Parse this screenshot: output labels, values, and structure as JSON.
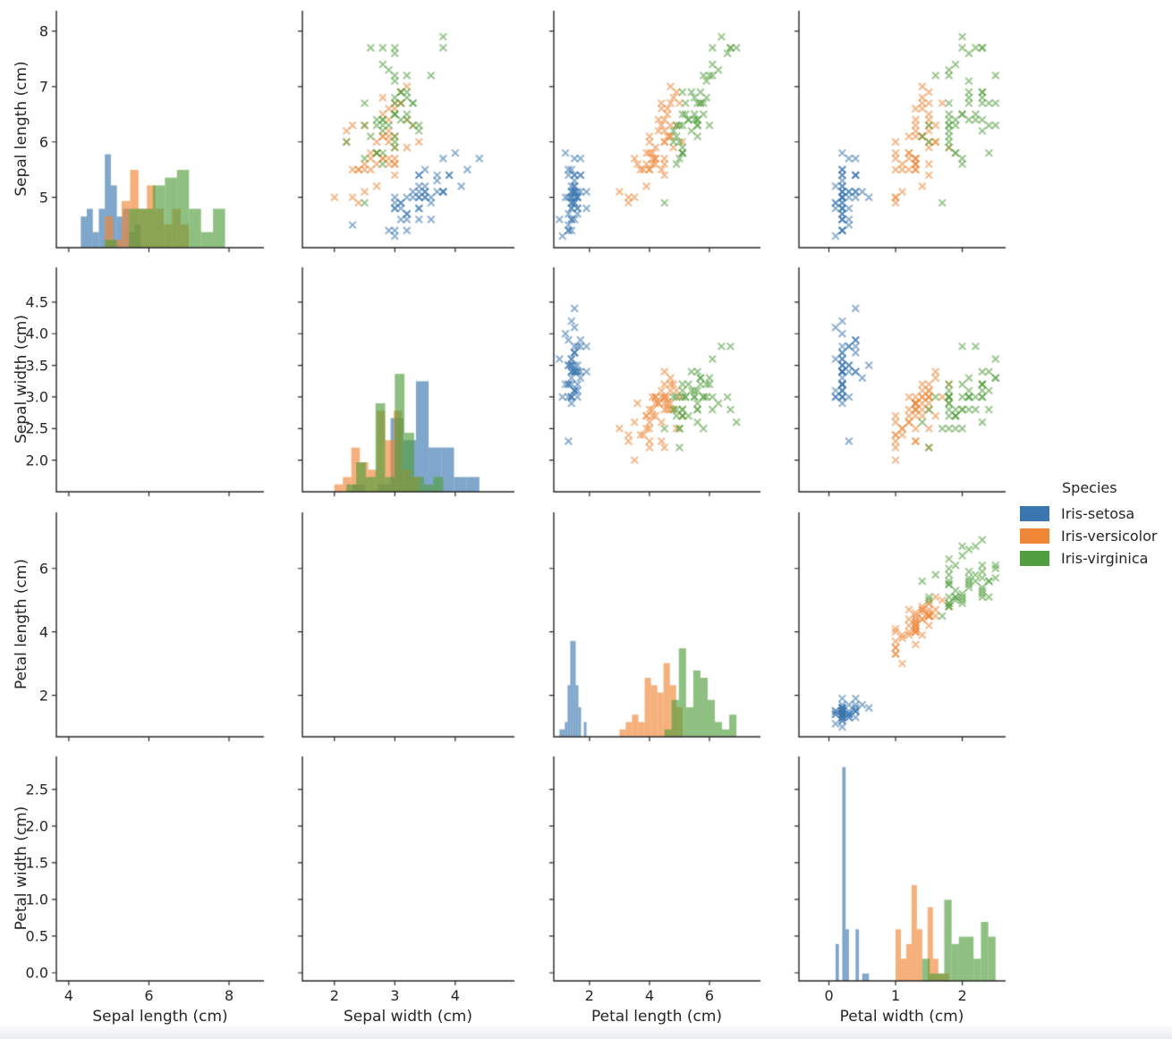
{
  "legend": {
    "title": "Species",
    "items": [
      {
        "label": "Iris-setosa",
        "color": "#3b76af"
      },
      {
        "label": "Iris-versicolor",
        "color": "#ef8636"
      },
      {
        "label": "Iris-virginica",
        "color": "#519e3e"
      }
    ]
  },
  "style": {
    "spine_color": "#262626",
    "text_color": "#262626",
    "background": "#ffffff",
    "scatter_alpha": 0.6,
    "hist_alpha": 0.65,
    "kde_core_gray": [
      90,
      100,
      110
    ]
  },
  "chart_data": {
    "type": "pairplot",
    "variables": [
      "Sepal length (cm)",
      "Sepal width (cm)",
      "Petal length (cm)",
      "Petal width (cm)"
    ],
    "panel_types": {
      "diagonal": "histogram",
      "upper_triangle": "scatter-x-markers",
      "lower_triangle": "filled-kde-contours"
    },
    "hist_bins_per_species": 10,
    "hist_count_max_scale": 30.45,
    "x_tick_values": [
      [
        4,
        6,
        8
      ],
      [
        2,
        3,
        4
      ],
      [
        2,
        4,
        6
      ],
      [
        0,
        1,
        2
      ]
    ],
    "x_tick_labels": [
      [
        "4",
        "6",
        "8"
      ],
      [
        "2",
        "3",
        "4"
      ],
      [
        "2",
        "4",
        "6"
      ],
      [
        "0",
        "1",
        "2"
      ]
    ],
    "y_tick_values": [
      [
        5,
        6,
        7,
        8
      ],
      [
        2.0,
        2.5,
        3.0,
        3.5,
        4.0,
        4.5
      ],
      [
        2,
        4,
        6
      ],
      [
        0.0,
        0.5,
        1.0,
        1.5,
        2.0,
        2.5
      ]
    ],
    "y_tick_labels": [
      [
        "5",
        "6",
        "7",
        "8"
      ],
      [
        "2.0",
        "2.5",
        "3.0",
        "3.5",
        "4.0",
        "4.5"
      ],
      [
        "2",
        "4",
        "6"
      ],
      [
        "0.0",
        "0.5",
        "1.0",
        "1.5",
        "2.0",
        "2.5"
      ]
    ],
    "x_lims": [
      [
        3.69,
        8.87
      ],
      [
        1.47,
        4.98
      ],
      [
        0.81,
        7.7
      ],
      [
        -0.45,
        2.65
      ]
    ],
    "y_lims": [
      [
        4.09,
        8.37
      ],
      [
        1.5,
        5.05
      ],
      [
        0.69,
        7.77
      ],
      [
        -0.11,
        2.95
      ]
    ],
    "series": [
      {
        "name": "Iris-setosa",
        "color": "#3b76af",
        "points": [
          [
            5.1,
            3.5,
            1.4,
            0.2
          ],
          [
            4.9,
            3.0,
            1.4,
            0.2
          ],
          [
            4.7,
            3.2,
            1.3,
            0.2
          ],
          [
            4.6,
            3.1,
            1.5,
            0.2
          ],
          [
            5.0,
            3.6,
            1.4,
            0.2
          ],
          [
            5.4,
            3.9,
            1.7,
            0.4
          ],
          [
            4.6,
            3.4,
            1.4,
            0.3
          ],
          [
            5.0,
            3.4,
            1.5,
            0.2
          ],
          [
            4.4,
            2.9,
            1.4,
            0.2
          ],
          [
            4.9,
            3.1,
            1.5,
            0.1
          ],
          [
            5.4,
            3.7,
            1.5,
            0.2
          ],
          [
            4.8,
            3.4,
            1.6,
            0.2
          ],
          [
            4.8,
            3.0,
            1.4,
            0.1
          ],
          [
            4.3,
            3.0,
            1.1,
            0.1
          ],
          [
            5.8,
            4.0,
            1.2,
            0.2
          ],
          [
            5.7,
            4.4,
            1.5,
            0.4
          ],
          [
            5.4,
            3.9,
            1.3,
            0.4
          ],
          [
            5.1,
            3.5,
            1.4,
            0.3
          ],
          [
            5.7,
            3.8,
            1.7,
            0.3
          ],
          [
            5.1,
            3.8,
            1.5,
            0.3
          ],
          [
            5.4,
            3.4,
            1.7,
            0.2
          ],
          [
            5.1,
            3.7,
            1.5,
            0.4
          ],
          [
            4.6,
            3.6,
            1.0,
            0.2
          ],
          [
            5.1,
            3.3,
            1.7,
            0.5
          ],
          [
            4.8,
            3.4,
            1.9,
            0.2
          ],
          [
            5.0,
            3.0,
            1.6,
            0.2
          ],
          [
            5.0,
            3.4,
            1.6,
            0.4
          ],
          [
            5.2,
            3.5,
            1.5,
            0.2
          ],
          [
            5.2,
            3.4,
            1.4,
            0.2
          ],
          [
            4.7,
            3.2,
            1.6,
            0.2
          ],
          [
            4.8,
            3.1,
            1.6,
            0.2
          ],
          [
            5.4,
            3.4,
            1.5,
            0.4
          ],
          [
            5.2,
            4.1,
            1.5,
            0.1
          ],
          [
            5.5,
            4.2,
            1.4,
            0.2
          ],
          [
            4.9,
            3.1,
            1.5,
            0.2
          ],
          [
            5.0,
            3.2,
            1.2,
            0.2
          ],
          [
            5.5,
            3.5,
            1.3,
            0.2
          ],
          [
            4.9,
            3.6,
            1.4,
            0.1
          ],
          [
            4.4,
            3.0,
            1.3,
            0.2
          ],
          [
            5.1,
            3.4,
            1.5,
            0.2
          ],
          [
            5.0,
            3.5,
            1.3,
            0.3
          ],
          [
            4.5,
            2.3,
            1.3,
            0.3
          ],
          [
            4.4,
            3.2,
            1.3,
            0.2
          ],
          [
            5.0,
            3.5,
            1.6,
            0.6
          ],
          [
            5.1,
            3.8,
            1.9,
            0.4
          ],
          [
            4.8,
            3.0,
            1.4,
            0.3
          ],
          [
            5.1,
            3.8,
            1.6,
            0.2
          ],
          [
            4.6,
            3.2,
            1.4,
            0.2
          ],
          [
            5.3,
            3.7,
            1.5,
            0.2
          ],
          [
            5.0,
            3.3,
            1.4,
            0.2
          ]
        ]
      },
      {
        "name": "Iris-versicolor",
        "color": "#ef8636",
        "points": [
          [
            7.0,
            3.2,
            4.7,
            1.4
          ],
          [
            6.4,
            3.2,
            4.5,
            1.5
          ],
          [
            6.9,
            3.1,
            4.9,
            1.5
          ],
          [
            5.5,
            2.3,
            4.0,
            1.3
          ],
          [
            6.5,
            2.8,
            4.6,
            1.5
          ],
          [
            5.7,
            2.8,
            4.5,
            1.3
          ],
          [
            6.3,
            3.3,
            4.7,
            1.6
          ],
          [
            4.9,
            2.4,
            3.3,
            1.0
          ],
          [
            6.6,
            2.9,
            4.6,
            1.3
          ],
          [
            5.2,
            2.7,
            3.9,
            1.4
          ],
          [
            5.0,
            2.0,
            3.5,
            1.0
          ],
          [
            5.9,
            3.0,
            4.2,
            1.5
          ],
          [
            6.0,
            2.2,
            4.0,
            1.0
          ],
          [
            6.1,
            2.9,
            4.7,
            1.4
          ],
          [
            5.6,
            2.9,
            3.6,
            1.3
          ],
          [
            6.7,
            3.1,
            4.4,
            1.4
          ],
          [
            5.6,
            3.0,
            4.5,
            1.5
          ],
          [
            5.8,
            2.7,
            4.1,
            1.0
          ],
          [
            6.2,
            2.2,
            4.5,
            1.5
          ],
          [
            5.6,
            2.5,
            3.9,
            1.1
          ],
          [
            5.9,
            3.2,
            4.8,
            1.8
          ],
          [
            6.1,
            2.8,
            4.0,
            1.3
          ],
          [
            6.3,
            2.5,
            4.9,
            1.5
          ],
          [
            6.1,
            2.8,
            4.7,
            1.2
          ],
          [
            6.4,
            2.9,
            4.3,
            1.3
          ],
          [
            6.6,
            3.0,
            4.4,
            1.4
          ],
          [
            6.8,
            2.8,
            4.8,
            1.4
          ],
          [
            6.7,
            3.0,
            5.0,
            1.7
          ],
          [
            6.0,
            2.9,
            4.5,
            1.5
          ],
          [
            5.7,
            2.6,
            3.5,
            1.0
          ],
          [
            5.5,
            2.4,
            3.8,
            1.1
          ],
          [
            5.5,
            2.4,
            3.7,
            1.0
          ],
          [
            5.8,
            2.7,
            3.9,
            1.2
          ],
          [
            6.0,
            2.7,
            5.1,
            1.6
          ],
          [
            5.4,
            3.0,
            4.5,
            1.5
          ],
          [
            6.0,
            3.4,
            4.5,
            1.6
          ],
          [
            6.7,
            3.1,
            4.7,
            1.5
          ],
          [
            6.3,
            2.3,
            4.4,
            1.3
          ],
          [
            5.6,
            3.0,
            4.1,
            1.3
          ],
          [
            5.5,
            2.5,
            4.0,
            1.3
          ],
          [
            5.5,
            2.6,
            4.4,
            1.2
          ],
          [
            6.1,
            3.0,
            4.6,
            1.4
          ],
          [
            5.8,
            2.6,
            4.0,
            1.2
          ],
          [
            5.0,
            2.3,
            3.3,
            1.0
          ],
          [
            5.6,
            2.7,
            4.2,
            1.3
          ],
          [
            5.7,
            3.0,
            4.2,
            1.2
          ],
          [
            5.7,
            2.9,
            4.2,
            1.3
          ],
          [
            6.2,
            2.9,
            4.3,
            1.3
          ],
          [
            5.1,
            2.5,
            3.0,
            1.1
          ],
          [
            5.7,
            2.8,
            4.1,
            1.3
          ]
        ]
      },
      {
        "name": "Iris-virginica",
        "color": "#519e3e",
        "points": [
          [
            6.3,
            3.3,
            6.0,
            2.5
          ],
          [
            5.8,
            2.7,
            5.1,
            1.9
          ],
          [
            7.1,
            3.0,
            5.9,
            2.1
          ],
          [
            6.3,
            2.9,
            5.6,
            1.8
          ],
          [
            6.5,
            3.0,
            5.8,
            2.2
          ],
          [
            7.6,
            3.0,
            6.6,
            2.1
          ],
          [
            4.9,
            2.5,
            4.5,
            1.7
          ],
          [
            7.3,
            2.9,
            6.3,
            1.8
          ],
          [
            6.7,
            2.5,
            5.8,
            1.8
          ],
          [
            7.2,
            3.6,
            6.1,
            2.5
          ],
          [
            6.5,
            3.2,
            5.1,
            2.0
          ],
          [
            6.4,
            2.7,
            5.3,
            1.9
          ],
          [
            6.8,
            3.0,
            5.5,
            2.1
          ],
          [
            5.7,
            2.5,
            5.0,
            2.0
          ],
          [
            5.8,
            2.8,
            5.1,
            2.4
          ],
          [
            6.4,
            3.2,
            5.3,
            2.3
          ],
          [
            6.5,
            3.0,
            5.5,
            1.8
          ],
          [
            7.7,
            3.8,
            6.7,
            2.2
          ],
          [
            7.7,
            2.6,
            6.9,
            2.3
          ],
          [
            6.0,
            2.2,
            5.0,
            1.5
          ],
          [
            6.9,
            3.2,
            5.7,
            2.3
          ],
          [
            5.6,
            2.8,
            4.9,
            2.0
          ],
          [
            7.7,
            2.8,
            6.7,
            2.0
          ],
          [
            6.3,
            2.7,
            4.9,
            1.8
          ],
          [
            6.7,
            3.3,
            5.7,
            2.1
          ],
          [
            7.2,
            3.2,
            6.0,
            1.8
          ],
          [
            6.2,
            2.8,
            4.8,
            1.8
          ],
          [
            6.1,
            3.0,
            4.9,
            1.8
          ],
          [
            6.4,
            2.8,
            5.6,
            2.1
          ],
          [
            7.2,
            3.0,
            5.8,
            1.6
          ],
          [
            7.4,
            2.8,
            6.1,
            1.9
          ],
          [
            7.9,
            3.8,
            6.4,
            2.0
          ],
          [
            6.4,
            2.8,
            5.6,
            2.2
          ],
          [
            6.3,
            2.8,
            5.1,
            1.5
          ],
          [
            6.1,
            2.6,
            5.6,
            1.4
          ],
          [
            7.7,
            3.0,
            6.1,
            2.3
          ],
          [
            6.3,
            3.4,
            5.6,
            2.4
          ],
          [
            6.4,
            3.1,
            5.5,
            1.8
          ],
          [
            6.0,
            3.0,
            4.8,
            1.8
          ],
          [
            6.9,
            3.1,
            5.4,
            2.1
          ],
          [
            6.7,
            3.1,
            5.6,
            2.4
          ],
          [
            6.9,
            3.1,
            5.1,
            2.3
          ],
          [
            5.8,
            2.7,
            5.1,
            1.9
          ],
          [
            6.8,
            3.2,
            5.9,
            2.3
          ],
          [
            6.7,
            3.3,
            5.7,
            2.5
          ],
          [
            6.7,
            3.0,
            5.2,
            2.3
          ],
          [
            6.3,
            2.5,
            5.0,
            1.9
          ],
          [
            6.5,
            3.0,
            5.2,
            2.0
          ],
          [
            6.2,
            3.4,
            5.4,
            2.3
          ],
          [
            5.9,
            3.0,
            5.1,
            1.8
          ]
        ]
      }
    ]
  }
}
